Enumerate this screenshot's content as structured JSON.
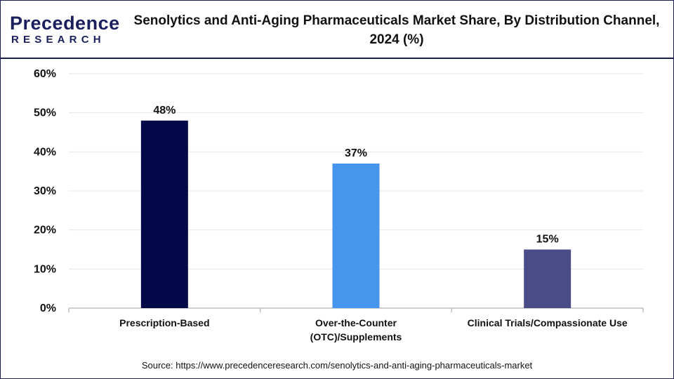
{
  "brand": {
    "name_main": "Precedence",
    "name_sub": "RESEARCH",
    "color": "#1a1f5e"
  },
  "title_line1": "Senolytics and Anti-Aging Pharmaceuticals Market Share, By Distribution Channel,",
  "title_line2": "2024 (%)",
  "source": "Source: https://www.precedenceresearch.com/senolytics-and-anti-aging-pharmaceuticals-market",
  "chart_data": {
    "type": "bar",
    "categories": [
      [
        "Prescription-Based"
      ],
      [
        "Over-the-Counter",
        "(OTC)/Supplements"
      ],
      [
        "Clinical Trials/Compassionate Use"
      ]
    ],
    "values": [
      48,
      37,
      15
    ],
    "value_labels": [
      "48%",
      "37%",
      "15%"
    ],
    "colors": [
      "#030849",
      "#4796ee",
      "#4a4c88"
    ],
    "ylim": [
      0,
      60
    ],
    "yticks": [
      0,
      10,
      20,
      30,
      40,
      50,
      60
    ],
    "ytick_labels": [
      "0%",
      "10%",
      "20%",
      "30%",
      "40%",
      "50%",
      "60%"
    ],
    "grid": true,
    "grid_color": "#e6e6e6",
    "xlabel": "",
    "ylabel": ""
  }
}
